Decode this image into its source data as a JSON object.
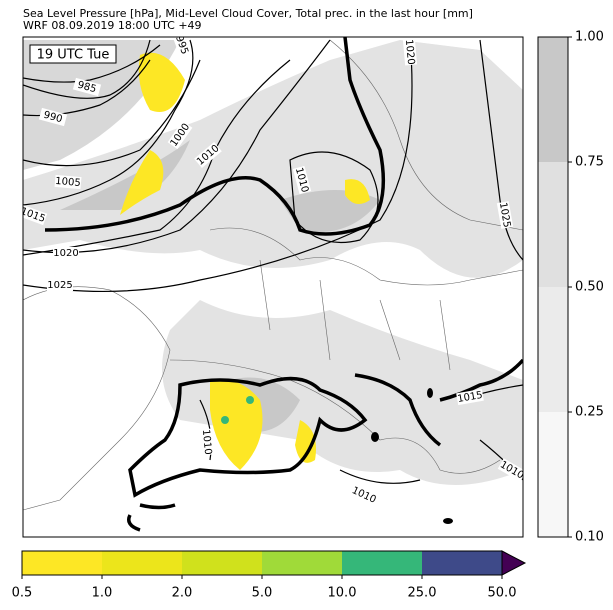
{
  "header": {
    "line1": "Sea Level Pressure [hPa], Mid-Level Cloud Cover, Total prec. in the last hour [mm]",
    "line2": "WRF 08.09.2019 18:00 UTC +49"
  },
  "map": {
    "time_label": "19 UTC Tue",
    "contour_labels": [
      "995",
      "985",
      "990",
      "1000",
      "1010",
      "1005",
      "1015",
      "1020",
      "1025",
      "1020",
      "1010",
      "1025",
      "1015",
      "1010",
      "1010",
      "1010"
    ]
  },
  "cloud_colorbar": {
    "ticks": [
      "0.10",
      "0.25",
      "0.50",
      "0.75",
      "1.00"
    ]
  },
  "precip_colorbar": {
    "ticks": [
      "0.5",
      "1.0",
      "2.0",
      "5.0",
      "10.0",
      "25.0",
      "50.0"
    ]
  }
}
